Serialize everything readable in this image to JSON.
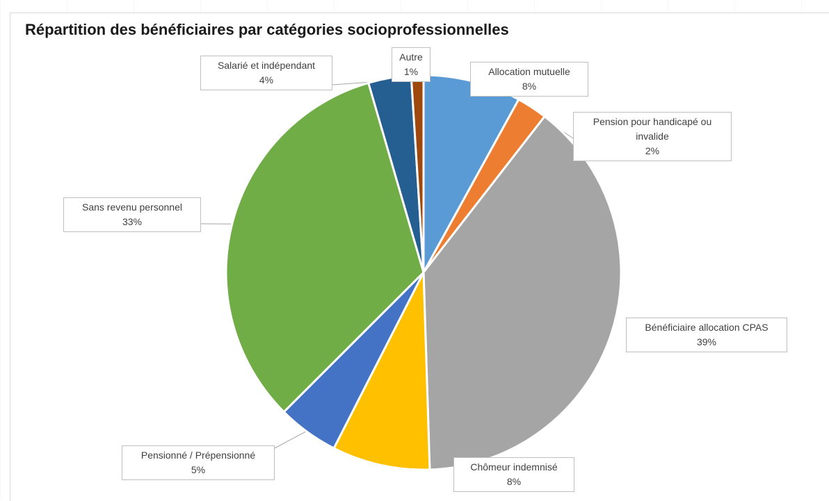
{
  "chart_data": {
    "type": "pie",
    "title": "Répartition des bénéficiaires par catégories socioprofessionnelles",
    "slices": [
      {
        "label": "Allocation mutuelle",
        "value": 8,
        "pct_label": "8%",
        "color": "#5b9bd5"
      },
      {
        "label": "Pension pour handicapé ou invalide",
        "value": 2.5,
        "pct_label": "2%",
        "color": "#ed7d31"
      },
      {
        "label": "Bénéficiaire allocation CPAS",
        "value": 39,
        "pct_label": "39%",
        "color": "#a5a5a5"
      },
      {
        "label": "Chômeur indemnisé",
        "value": 8,
        "pct_label": "8%",
        "color": "#ffc000"
      },
      {
        "label": "Pensionné / Prépensionné",
        "value": 5,
        "pct_label": "5%",
        "color": "#4472c4"
      },
      {
        "label": "Sans revenu personnel",
        "value": 33,
        "pct_label": "33%",
        "color": "#70ad47"
      },
      {
        "label": "Salarié et indépendant",
        "value": 3.5,
        "pct_label": "4%",
        "color": "#255e91"
      },
      {
        "label": "Autre",
        "value": 1,
        "pct_label": "1%",
        "color": "#9e480e"
      }
    ],
    "start_angle": "12 o'clock",
    "direction": "clockwise",
    "legend": "none",
    "data_labels": "callouts"
  }
}
